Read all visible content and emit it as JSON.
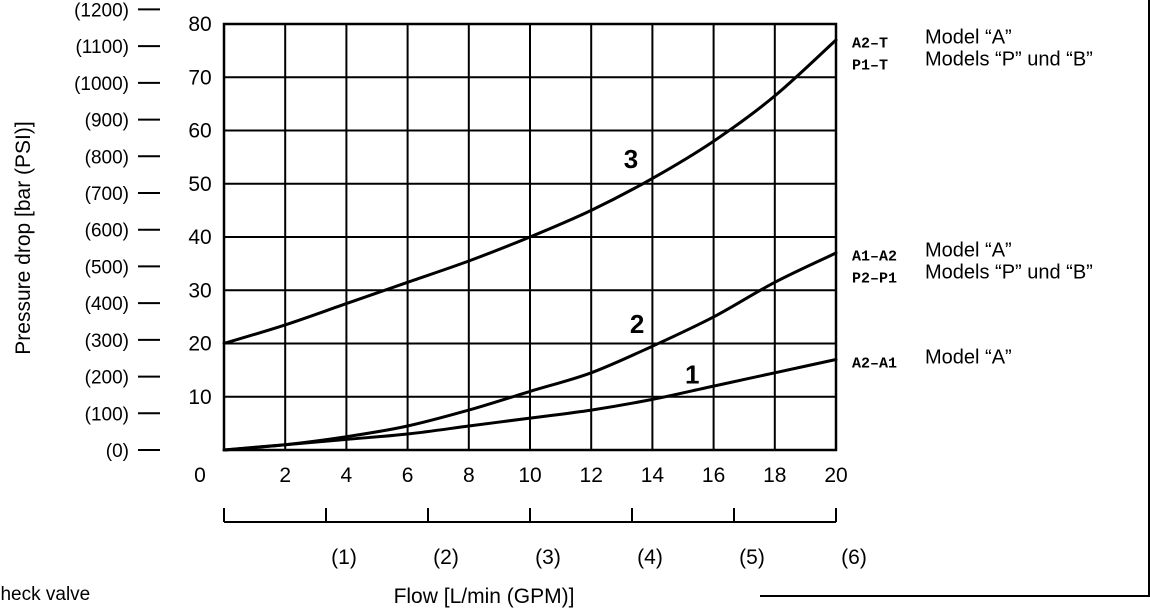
{
  "chart_data": {
    "type": "line",
    "xlabel": "Flow  [L/min (GPM)]",
    "ylabel": "Pressure drop [bar (PSI)]",
    "xlim": [
      0,
      20
    ],
    "ylim": [
      0,
      80
    ],
    "grid": true,
    "x_ticks": [
      0,
      2,
      4,
      6,
      8,
      10,
      12,
      14,
      16,
      18,
      20
    ],
    "y_ticks": [
      0,
      10,
      20,
      30,
      40,
      50,
      60,
      70,
      80
    ],
    "y_tick_labels": [
      "",
      "10",
      "20",
      "30",
      "40",
      "50",
      "60",
      "70",
      "80"
    ],
    "x_origin_label": "0",
    "psi_ticks": [
      {
        "psi": 0,
        "label": "(0)"
      },
      {
        "psi": 100,
        "label": "(100)"
      },
      {
        "psi": 200,
        "label": "(200)"
      },
      {
        "psi": 300,
        "label": "(300)"
      },
      {
        "psi": 400,
        "label": "(400)"
      },
      {
        "psi": 500,
        "label": "(500)"
      },
      {
        "psi": 600,
        "label": "(600)"
      },
      {
        "psi": 700,
        "label": "(700)"
      },
      {
        "psi": 800,
        "label": "(800)"
      },
      {
        "psi": 900,
        "label": "(900)"
      },
      {
        "psi": 1000,
        "label": "(1000)"
      },
      {
        "psi": 1100,
        "label": "(1100)"
      },
      {
        "psi": 1200,
        "label": "(1200)"
      }
    ],
    "gpm_ticks": [
      {
        "gpm": 0,
        "label": ""
      },
      {
        "gpm": 1,
        "label": "(1)"
      },
      {
        "gpm": 2,
        "label": "(2)"
      },
      {
        "gpm": 3,
        "label": "(3)"
      },
      {
        "gpm": 4,
        "label": "(4)"
      },
      {
        "gpm": 5,
        "label": "(5)"
      },
      {
        "gpm": 6,
        "label": "(6)"
      }
    ],
    "series": [
      {
        "name": "1",
        "x": [
          0,
          2,
          4,
          6,
          8,
          10,
          12,
          14,
          16,
          18,
          20
        ],
        "y": [
          0,
          1,
          2,
          3,
          4.5,
          6,
          7.5,
          9.5,
          12,
          14.5,
          17
        ]
      },
      {
        "name": "2",
        "x": [
          0,
          2,
          4,
          6,
          8,
          10,
          12,
          14,
          16,
          18,
          20
        ],
        "y": [
          0,
          1,
          2.5,
          4.5,
          7.5,
          11,
          14.5,
          19.5,
          25,
          31.5,
          37
        ]
      },
      {
        "name": "3",
        "x": [
          0,
          2,
          4,
          6,
          8,
          10,
          12,
          14,
          16,
          18,
          20
        ],
        "y": [
          20,
          23.5,
          27.5,
          31.5,
          35.5,
          40,
          45,
          51,
          58,
          66.5,
          77
        ]
      }
    ],
    "curve_labels": [
      {
        "text": "3",
        "x": 13.3,
        "y": 53
      },
      {
        "text": "2",
        "x": 13.5,
        "y": 22
      },
      {
        "text": "1",
        "x": 15.3,
        "y": 12.5
      }
    ],
    "legend_groups": [
      {
        "y": 75,
        "rows": [
          {
            "code": "A2–T",
            "desc": "Model “A”"
          },
          {
            "code": "P1–T",
            "desc": "Models “P” und “B”"
          }
        ]
      },
      {
        "y": 35,
        "rows": [
          {
            "code": "A1–A2",
            "desc": "Model “A”"
          },
          {
            "code": "P2–P1",
            "desc": "Models “P” und “B”"
          }
        ]
      },
      {
        "y": 17,
        "rows": [
          {
            "code": "A2–A1",
            "desc": "Model “A”"
          }
        ]
      }
    ],
    "clipped_caption": "e of check valve"
  }
}
